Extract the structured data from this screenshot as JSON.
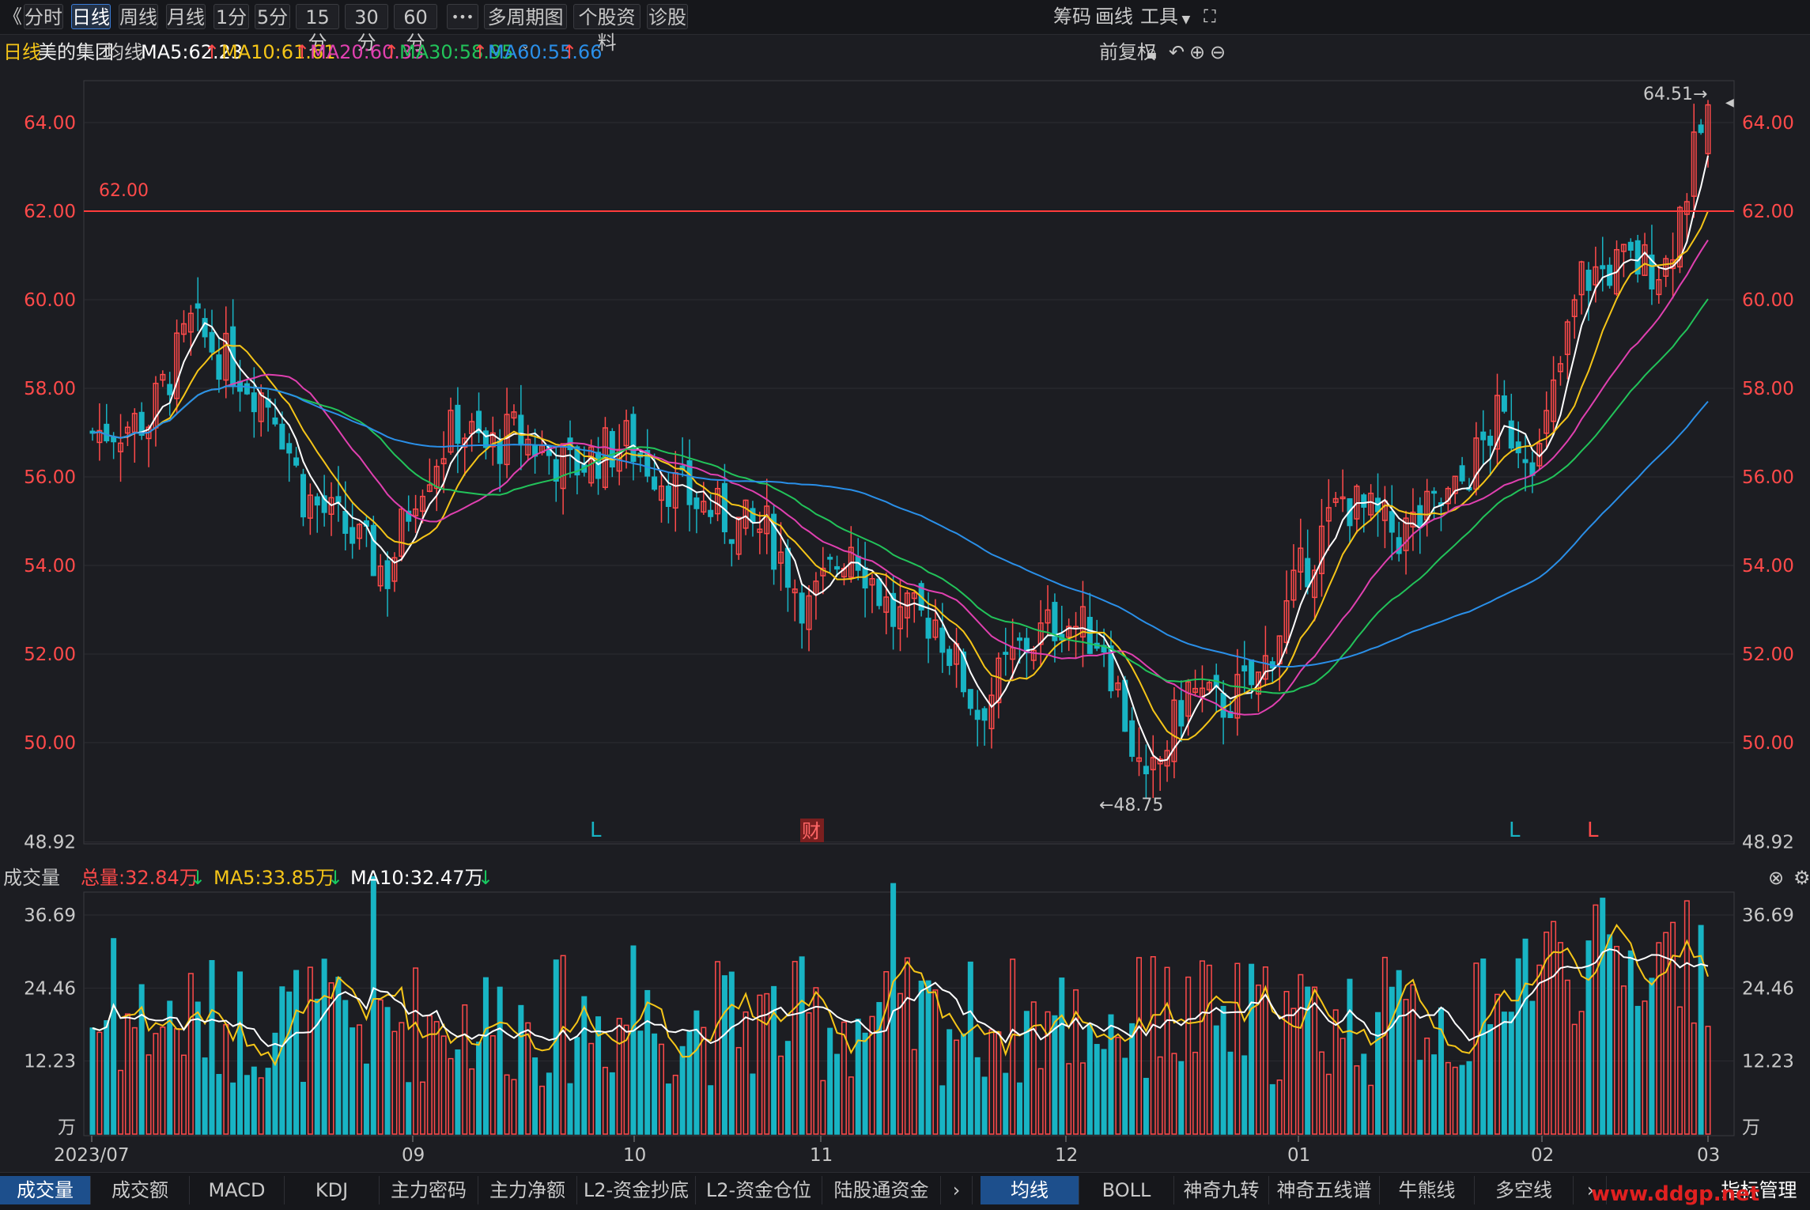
{
  "toolbar": {
    "back": "《",
    "periods": [
      "分时",
      "日线",
      "周线",
      "月线",
      "1分",
      "5分",
      "15分",
      "30分",
      "60分"
    ],
    "more": "•••",
    "multi": "多周期图",
    "profile": "个股资料",
    "diag": "诊股",
    "chips": "筹码",
    "draw": "画线",
    "tools": "工具"
  },
  "info": {
    "period": "日线",
    "name": "美的集团",
    "ma_label": "均线",
    "ma5": "MA5:62.23",
    "ma10": "MA10:61.61",
    "ma20": "MA20:60.33",
    "ma30": "MA30:58.95",
    "ma60": "MA60:55.66",
    "adjust": "前复权"
  },
  "volume": {
    "label": "成交量",
    "total": "总量:32.84万",
    "ma5": "MA5:33.85万",
    "ma10": "MA10:32.47万"
  },
  "price_axis": [
    "64.00",
    "62.00",
    "60.00",
    "58.00",
    "56.00",
    "54.00",
    "52.00",
    "50.00"
  ],
  "volume_axis": [
    "48.92",
    "36.69",
    "24.46",
    "12.23",
    "万"
  ],
  "date_labels": [
    "2023/07",
    "09",
    "10",
    "11",
    "12",
    "01",
    "02",
    "03"
  ],
  "annotations": {
    "high": "64.51→",
    "low": "←48.75",
    "hline": "62.00",
    "marks": [
      "L",
      "财",
      "L",
      "L"
    ]
  },
  "tabs_left": [
    "成交量",
    "成交额",
    "MACD",
    "KDJ",
    "主力密码",
    "主力净额",
    "L2-资金抄底",
    "L2-资金仓位",
    "陆股通资金"
  ],
  "tabs_right": [
    "均线",
    "BOLL",
    "神奇九转",
    "神奇五线谱",
    "牛熊线",
    "多空线"
  ],
  "tabs_manage": "指标管理",
  "watermark": "www.ddgp.net",
  "colors": {
    "up": "#ff4a4a",
    "down": "#18b4c4",
    "ma5": "#ffffff",
    "ma10": "#f5c518",
    "ma20": "#e040b0",
    "ma30": "#22c35a",
    "ma60": "#2a8fe8",
    "accent": "#3a7bd5"
  },
  "chart_data": {
    "type": "candlestick",
    "title": "美的集团",
    "period": "日线",
    "ylim": [
      48,
      65
    ],
    "hline": 62.0,
    "high": 64.51,
    "low": 48.75,
    "x_ticks": [
      "2023/07",
      "09",
      "10",
      "11",
      "12",
      "01",
      "02",
      "03"
    ],
    "volume_ylim": [
      0,
      52
    ],
    "volume_unit": "万"
  }
}
